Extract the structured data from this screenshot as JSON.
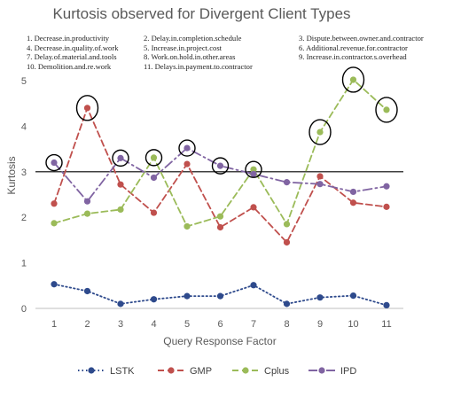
{
  "chart_data": {
    "type": "line",
    "title": "Kurtosis observed for Divergent Client Types",
    "xlabel": "Query Response Factor",
    "ylabel": "Kurtosis",
    "categories": [
      "1",
      "2",
      "3",
      "4",
      "5",
      "6",
      "7",
      "8",
      "9",
      "10",
      "11"
    ],
    "ylim": [
      0,
      5
    ],
    "yticks": [
      "0",
      "1",
      "2",
      "3",
      "4",
      "5"
    ],
    "reference_line": 3,
    "legend_position": "bottom",
    "factor_key": [
      [
        "1. Decrease.in.productivity",
        "2. Delay.in.completion.schedule",
        "3. Dispute.between.owner.and.contractor"
      ],
      [
        "4. Decrease.in.quality.of.work",
        "5. Increase.in.project.cost",
        "6. Additional.revenue.for.contractor"
      ],
      [
        "7. Delay.of.material.and.tools",
        "8. Work.on.hold.in.other.areas",
        "9. Increase.in.contractor.s.overhead"
      ],
      [
        "10. Demolition.and.re.work",
        "11. Delays.in.payment.to.contractor",
        ""
      ]
    ],
    "series": [
      {
        "name": "LSTK",
        "color": "#2e4a8c",
        "dash": "dotted",
        "values": [
          0.53,
          0.38,
          0.1,
          0.2,
          0.27,
          0.27,
          0.51,
          0.1,
          0.24,
          0.28,
          0.07
        ]
      },
      {
        "name": "GMP",
        "color": "#c0504d",
        "dash": "dashed",
        "values": [
          2.3,
          4.4,
          2.72,
          2.1,
          3.17,
          1.78,
          2.22,
          1.45,
          2.9,
          2.32,
          2.23
        ]
      },
      {
        "name": "Cplus",
        "color": "#9bbb59",
        "dash": "dashed",
        "values": [
          1.87,
          2.08,
          2.17,
          3.31,
          1.8,
          2.02,
          3.05,
          1.85,
          3.87,
          5.02,
          4.36
        ]
      },
      {
        "name": "IPD",
        "color": "#8064a2",
        "dash": "dashdot",
        "values": [
          3.2,
          2.35,
          3.3,
          2.87,
          3.52,
          3.13,
          2.95,
          2.77,
          2.73,
          2.56,
          2.68
        ]
      }
    ],
    "highlighted_points": [
      {
        "series": "IPD",
        "category": "1"
      },
      {
        "series": "GMP",
        "category": "2"
      },
      {
        "series": "IPD",
        "category": "3"
      },
      {
        "series": "Cplus",
        "category": "4"
      },
      {
        "series": "IPD",
        "category": "5"
      },
      {
        "series": "IPD",
        "category": "6"
      },
      {
        "series": "Cplus",
        "category": "7"
      },
      {
        "series": "Cplus",
        "category": "9"
      },
      {
        "series": "Cplus",
        "category": "10"
      },
      {
        "series": "Cplus",
        "category": "11"
      }
    ]
  }
}
